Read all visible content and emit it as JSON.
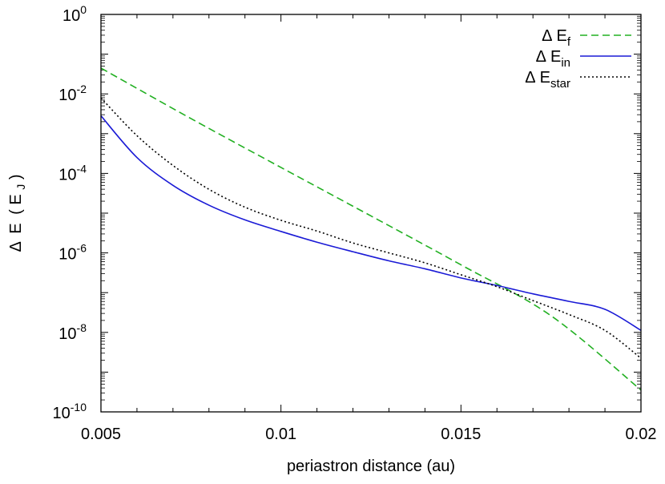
{
  "chart_data": {
    "type": "line",
    "title": "",
    "xlabel": "periastron distance (au)",
    "ylabel": {
      "delta": "Δ",
      "symbol": "E",
      "open": "(",
      "unit_symbol": "E",
      "unit_sub": "J",
      "close": ")"
    },
    "xlim": [
      0.005,
      0.02
    ],
    "ylim_log10": [
      -10,
      0
    ],
    "yscale": "log",
    "x_ticks": [
      {
        "value": 0.005,
        "label": "0.005"
      },
      {
        "value": 0.01,
        "label": "0.01"
      },
      {
        "value": 0.015,
        "label": "0.015"
      },
      {
        "value": 0.02,
        "label": "0.02"
      }
    ],
    "y_ticks": [
      {
        "exp": 0,
        "base": "10",
        "sup": "0"
      },
      {
        "exp": -2,
        "base": "10",
        "sup": "-2"
      },
      {
        "exp": -4,
        "base": "10",
        "sup": "-4"
      },
      {
        "exp": -6,
        "base": "10",
        "sup": "-6"
      },
      {
        "exp": -8,
        "base": "10",
        "sup": "-8"
      },
      {
        "exp": -10,
        "base": "10",
        "sup": "-10"
      }
    ],
    "legend_position": "top-right",
    "series": [
      {
        "name": "ΔE_f",
        "legend": {
          "delta": "Δ",
          "symbol": "E",
          "sub": "f"
        },
        "color": "#22b022",
        "dash": "dashed",
        "x": [
          0.005,
          0.0075,
          0.01,
          0.0125,
          0.015,
          0.0175,
          0.02
        ],
        "y_log10": [
          -1.35,
          -2.62,
          -3.85,
          -5.07,
          -6.3,
          -7.58,
          -9.45
        ]
      },
      {
        "name": "ΔE_in",
        "legend": {
          "delta": "Δ",
          "symbol": "E",
          "sub": "in"
        },
        "color": "#1a1ad6",
        "dash": "solid",
        "x": [
          0.005,
          0.006,
          0.007,
          0.008,
          0.009,
          0.01,
          0.011,
          0.012,
          0.013,
          0.014,
          0.015,
          0.016,
          0.017,
          0.018,
          0.019,
          0.02
        ],
        "y_log10": [
          -2.55,
          -3.6,
          -4.3,
          -4.8,
          -5.17,
          -5.46,
          -5.73,
          -5.97,
          -6.2,
          -6.4,
          -6.63,
          -6.82,
          -7.03,
          -7.22,
          -7.42,
          -7.95
        ]
      },
      {
        "name": "ΔE_star",
        "legend": {
          "delta": "Δ",
          "symbol": "E",
          "sub": "star"
        },
        "color": "#000000",
        "dash": "dotted",
        "x": [
          0.005,
          0.006,
          0.007,
          0.008,
          0.009,
          0.01,
          0.011,
          0.012,
          0.013,
          0.014,
          0.015,
          0.016,
          0.017,
          0.018,
          0.019,
          0.02
        ],
        "y_log10": [
          -2.1,
          -3.05,
          -3.8,
          -4.4,
          -4.85,
          -5.18,
          -5.45,
          -5.75,
          -6.0,
          -6.25,
          -6.55,
          -6.85,
          -7.2,
          -7.55,
          -7.95,
          -8.65
        ]
      }
    ]
  }
}
